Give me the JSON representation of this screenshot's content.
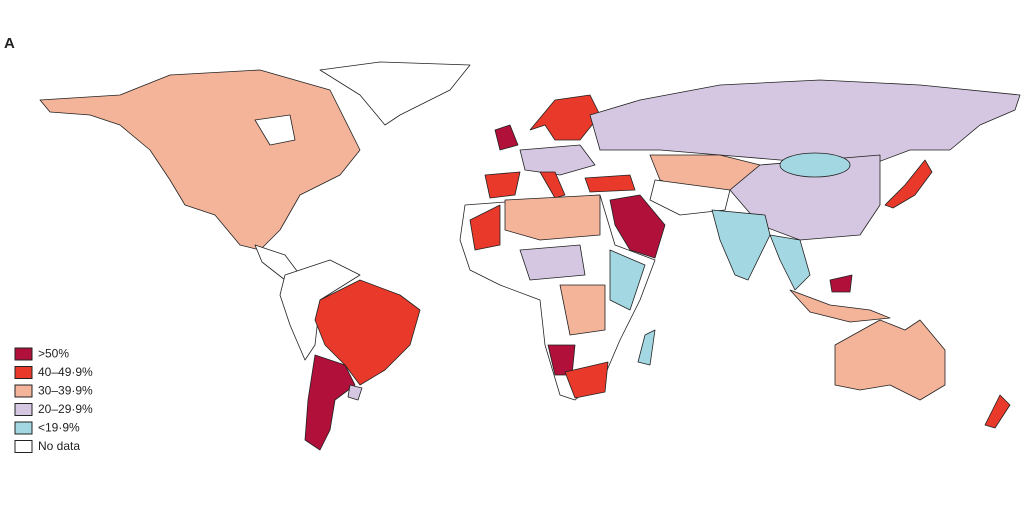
{
  "panel_label": "A",
  "legend": {
    "items": [
      {
        "label": ">50%",
        "color": "#b0103a"
      },
      {
        "label": "40–49·9%",
        "color": "#e8392b"
      },
      {
        "label": "30–39·9%",
        "color": "#f4b49a"
      },
      {
        "label": "20–29·9%",
        "color": "#d5c7e1"
      },
      {
        "label": "<19·9%",
        "color": "#a3d8e3"
      },
      {
        "label": "No data",
        "color": "#ffffff"
      }
    ]
  }
}
